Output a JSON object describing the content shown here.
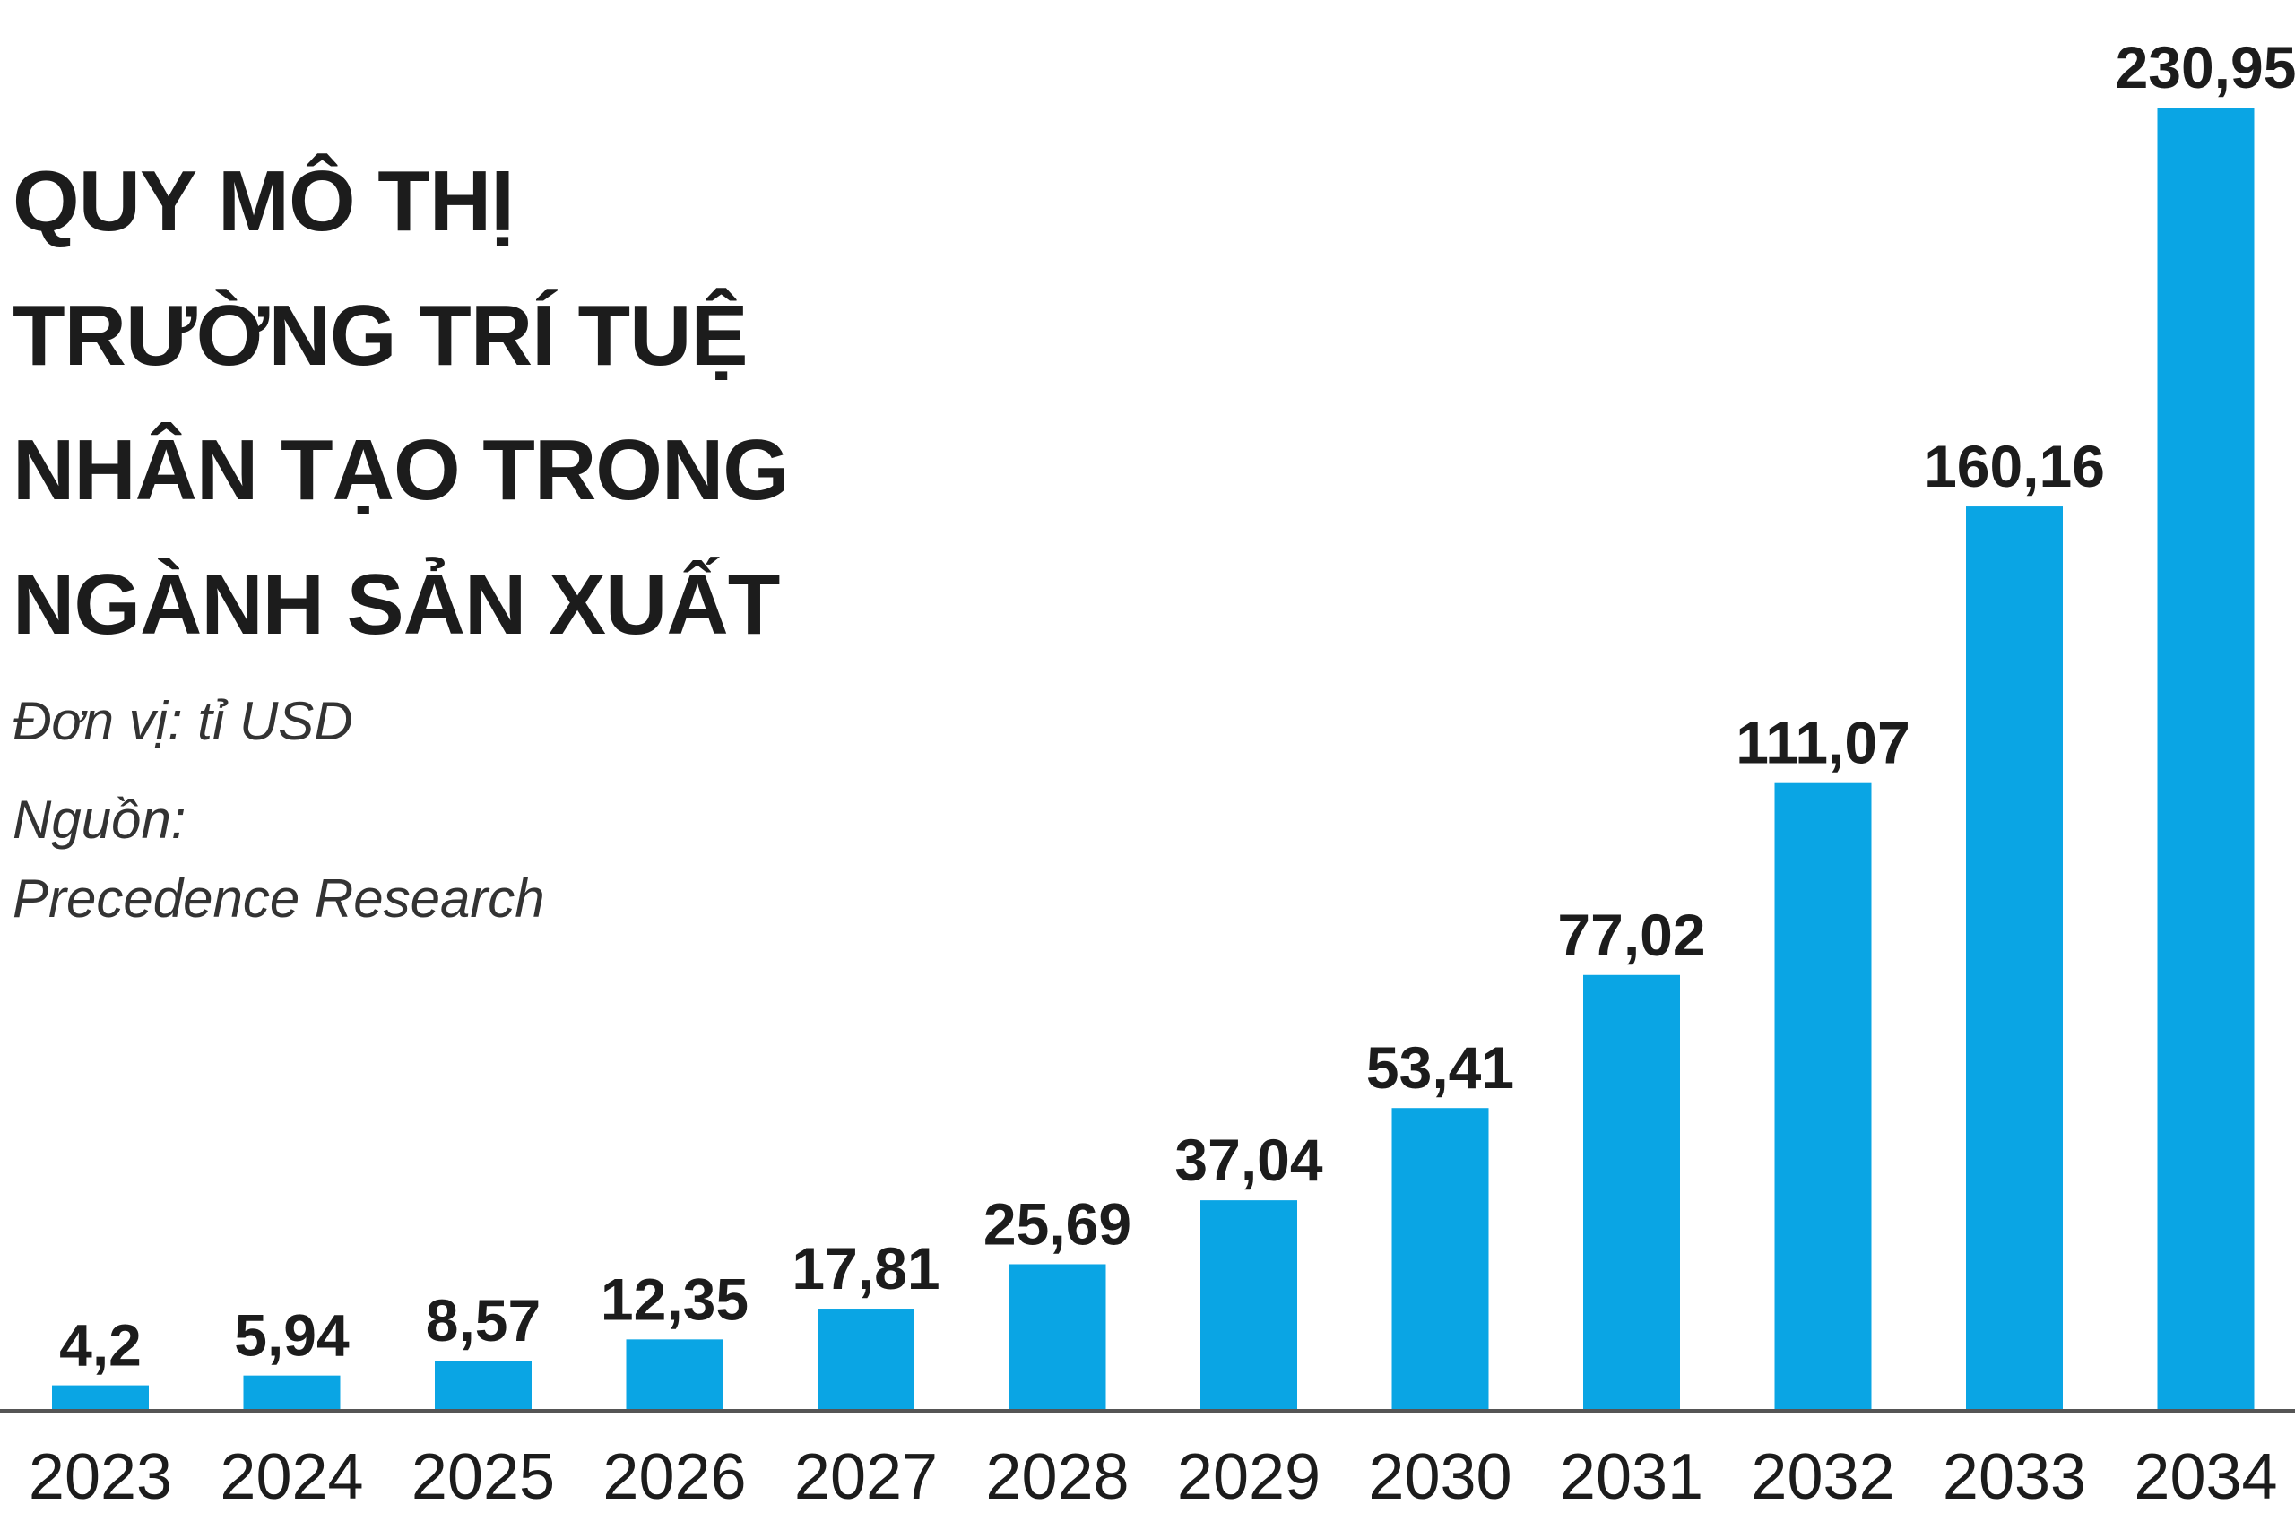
{
  "chart_data": {
    "type": "bar",
    "title_lines": [
      "QUY MÔ THỊ",
      "TRƯỜNG TRÍ TUỆ",
      "NHÂN TẠO TRONG",
      "NGÀNH SẢN XUẤT"
    ],
    "unit": "Đơn vị: tỉ USD",
    "source_label": "Nguồn:",
    "source_name": "Precedence Research",
    "categories": [
      "2023",
      "2024",
      "2025",
      "2026",
      "2027",
      "2028",
      "2029",
      "2030",
      "2031",
      "2032",
      "2033",
      "2034"
    ],
    "values": [
      4.2,
      5.94,
      8.57,
      12.35,
      17.81,
      25.69,
      37.04,
      53.41,
      77.02,
      111.07,
      160.16,
      230.95
    ],
    "value_labels": [
      "4,2",
      "5,94",
      "8,57",
      "12,35",
      "17,81",
      "25,69",
      "37,04",
      "53,41",
      "77,02",
      "111,07",
      "160,16",
      "230,95"
    ],
    "bar_color": "#0aa5e4",
    "axis_color": "#555555",
    "grid": false
  }
}
